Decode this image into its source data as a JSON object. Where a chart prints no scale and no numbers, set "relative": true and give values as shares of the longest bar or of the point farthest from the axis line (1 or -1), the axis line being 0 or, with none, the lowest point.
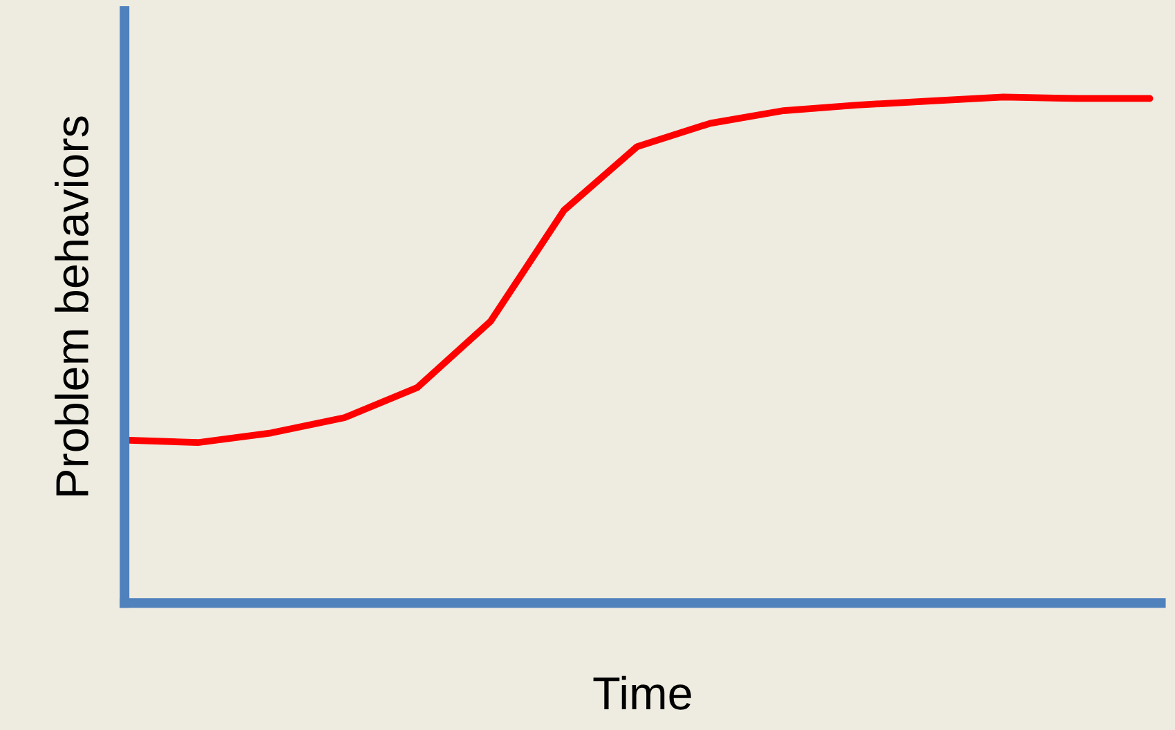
{
  "chart_data": {
    "type": "line",
    "relative": true,
    "xlabel": "Time",
    "ylabel": "Problem behaviors",
    "categories": [
      null,
      null,
      null,
      null,
      null,
      null,
      null,
      null,
      null,
      null,
      null,
      null,
      null,
      null,
      null
    ],
    "series": [
      {
        "color": "#ff0000",
        "values": [
          0.322,
          0.317,
          0.336,
          0.366,
          0.426,
          0.557,
          0.776,
          0.902,
          0.948,
          0.973,
          0.984,
          0.992,
          1,
          0.997,
          0.997
        ]
      }
    ],
    "tick_labels": false,
    "grid": false,
    "legend": false,
    "marker": "none",
    "line_style": "solid"
  }
}
